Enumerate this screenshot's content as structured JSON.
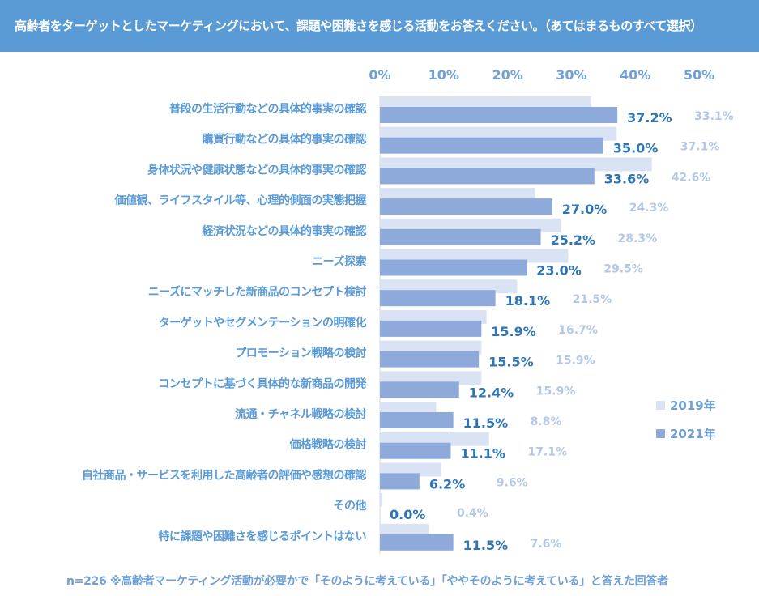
{
  "header": {
    "question": "高齢者をターゲットとしたマーケティングにおいて、課題や困難さを感じる活動をお答えください。（あてはまるものすべて選択）"
  },
  "footnote": "n=226 ※高齢者マーケティング活動が必要かで「そのように考えている」「ややそのように考えている」と答えた回答者",
  "colors": {
    "header_bg": "#5b9bd5",
    "bar_2021": "#8eaadb",
    "bar_2019": "#dae3f3",
    "label_2021": "#2e75b6",
    "label_2019": "#b4c7e7",
    "category_text": "#5b9bd5",
    "axis_text": "#6fa0d6"
  },
  "chart_data": {
    "type": "bar",
    "orientation": "horizontal",
    "x_ticks": [
      "0%",
      "10%",
      "20%",
      "30%",
      "40%",
      "50%"
    ],
    "xlim": [
      0,
      50
    ],
    "legend_position": "right",
    "categories": [
      "普段の生活行動などの具体的事実の確認",
      "購買行動などの具体的事実の確認",
      "身体状況や健康状態などの具体的事実の確認",
      "価値観、ライフスタイル等、心理的側面の実態把握",
      "経済状況などの具体的事実の確認",
      "ニーズ探索",
      "ニーズにマッチした新商品のコンセプト検討",
      "ターゲットやセグメンテーションの明確化",
      "プロモーション戦略の検討",
      "コンセプトに基づく具体的な新商品の開発",
      "流通・チャネル戦略の検討",
      "価格戦略の検討",
      "自社商品・サービスを利用した高齢者の評価や感想の確認",
      "その他",
      "特に課題や困難さを感じるポイントはない"
    ],
    "series": [
      {
        "name": "2019年",
        "values": [
          33.1,
          37.1,
          42.6,
          24.3,
          28.3,
          29.5,
          21.5,
          16.7,
          15.9,
          15.9,
          8.8,
          17.1,
          9.6,
          0.4,
          7.6
        ],
        "labels": [
          "33.1%",
          "37.1%",
          "42.6%",
          "24.3%",
          "28.3%",
          "29.5%",
          "21.5%",
          "16.7%",
          "15.9%",
          "15.9%",
          "8.8%",
          "17.1%",
          "9.6%",
          "0.4%",
          "7.6%"
        ]
      },
      {
        "name": "2021年",
        "values": [
          37.2,
          35.0,
          33.6,
          27.0,
          25.2,
          23.0,
          18.1,
          15.9,
          15.5,
          12.4,
          11.5,
          11.1,
          6.2,
          0.0,
          11.5
        ],
        "labels": [
          "37.2%",
          "35.0%",
          "33.6%",
          "27.0%",
          "25.2%",
          "23.0%",
          "18.1%",
          "15.9%",
          "15.5%",
          "12.4%",
          "11.5%",
          "11.1%",
          "6.2%",
          "0.0%",
          "11.5%"
        ]
      }
    ]
  }
}
